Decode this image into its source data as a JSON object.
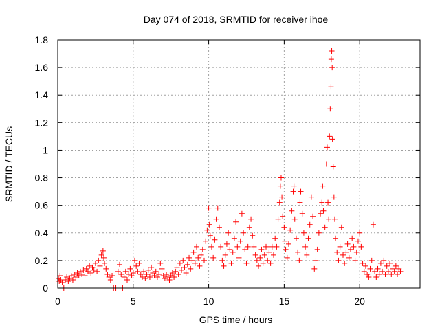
{
  "chart_data": {
    "type": "scatter",
    "title": "Day 074 of 2018, SRMTID for receiver ihoe",
    "xlabel": "GPS time / hours",
    "ylabel": "SRMTID / TECUs",
    "xlim": [
      0,
      24
    ],
    "ylim": [
      0,
      1.8
    ],
    "x_ticks": [
      0,
      5,
      10,
      15,
      20
    ],
    "x_tick_labels": [
      "0",
      "5",
      "10",
      "15",
      "20"
    ],
    "y_ticks": [
      0,
      0.2,
      0.4,
      0.6,
      0.8,
      1.0,
      1.2,
      1.4,
      1.6,
      1.8
    ],
    "y_tick_labels": [
      "0",
      "0.2",
      "0.4",
      "0.6",
      "0.8",
      "1",
      "1.2",
      "1.4",
      "1.6",
      "1.8"
    ],
    "grid": true,
    "marker": "plus",
    "series": [
      {
        "name": "SRMTID",
        "color": "#ff0000",
        "points": [
          [
            0.05,
            0.07
          ],
          [
            0.1,
            0.05
          ],
          [
            0.15,
            0.09
          ],
          [
            0.2,
            0.06
          ],
          [
            0.3,
            0.04
          ],
          [
            0.4,
            0.0
          ],
          [
            0.5,
            0.06
          ],
          [
            0.6,
            0.08
          ],
          [
            0.7,
            0.05
          ],
          [
            0.8,
            0.07
          ],
          [
            0.9,
            0.09
          ],
          [
            1.0,
            0.06
          ],
          [
            1.1,
            0.1
          ],
          [
            1.2,
            0.08
          ],
          [
            1.3,
            0.11
          ],
          [
            1.4,
            0.09
          ],
          [
            1.5,
            0.12
          ],
          [
            1.6,
            0.1
          ],
          [
            1.7,
            0.13
          ],
          [
            1.8,
            0.09
          ],
          [
            1.9,
            0.14
          ],
          [
            2.0,
            0.12
          ],
          [
            2.1,
            0.16
          ],
          [
            2.2,
            0.11
          ],
          [
            2.3,
            0.15
          ],
          [
            2.4,
            0.13
          ],
          [
            2.5,
            0.18
          ],
          [
            2.6,
            0.12
          ],
          [
            2.7,
            0.2
          ],
          [
            2.8,
            0.16
          ],
          [
            2.9,
            0.24
          ],
          [
            3.0,
            0.27
          ],
          [
            3.05,
            0.22
          ],
          [
            3.1,
            0.18
          ],
          [
            3.2,
            0.14
          ],
          [
            3.3,
            0.1
          ],
          [
            3.4,
            0.08
          ],
          [
            3.5,
            0.06
          ],
          [
            3.6,
            0.09
          ],
          [
            3.7,
            0.0
          ],
          [
            3.85,
            0.0
          ],
          [
            4.0,
            0.12
          ],
          [
            4.1,
            0.17
          ],
          [
            4.2,
            0.1
          ],
          [
            4.3,
            0.0
          ],
          [
            4.4,
            0.08
          ],
          [
            4.5,
            0.12
          ],
          [
            4.6,
            0.06
          ],
          [
            4.7,
            0.1
          ],
          [
            4.8,
            0.14
          ],
          [
            4.9,
            0.09
          ],
          [
            5.0,
            0.11
          ],
          [
            5.1,
            0.2
          ],
          [
            5.2,
            0.16
          ],
          [
            5.3,
            0.12
          ],
          [
            5.4,
            0.18
          ],
          [
            5.5,
            0.1
          ],
          [
            5.6,
            0.08
          ],
          [
            5.7,
            0.12
          ],
          [
            5.8,
            0.07
          ],
          [
            5.9,
            0.1
          ],
          [
            6.0,
            0.13
          ],
          [
            6.1,
            0.08
          ],
          [
            6.2,
            0.15
          ],
          [
            6.3,
            0.11
          ],
          [
            6.4,
            0.09
          ],
          [
            6.5,
            0.12
          ],
          [
            6.6,
            0.08
          ],
          [
            6.7,
            0.1
          ],
          [
            6.8,
            0.18
          ],
          [
            6.9,
            0.14
          ],
          [
            7.0,
            0.09
          ],
          [
            7.1,
            0.07
          ],
          [
            7.2,
            0.1
          ],
          [
            7.3,
            0.08
          ],
          [
            7.4,
            0.06
          ],
          [
            7.5,
            0.09
          ],
          [
            7.6,
            0.11
          ],
          [
            7.7,
            0.08
          ],
          [
            7.8,
            0.12
          ],
          [
            7.9,
            0.15
          ],
          [
            8.0,
            0.1
          ],
          [
            8.1,
            0.18
          ],
          [
            8.2,
            0.13
          ],
          [
            8.3,
            0.2
          ],
          [
            8.4,
            0.15
          ],
          [
            8.5,
            0.11
          ],
          [
            8.6,
            0.17
          ],
          [
            8.7,
            0.22
          ],
          [
            8.8,
            0.14
          ],
          [
            8.9,
            0.2
          ],
          [
            9.0,
            0.26
          ],
          [
            9.1,
            0.18
          ],
          [
            9.2,
            0.3
          ],
          [
            9.3,
            0.22
          ],
          [
            9.4,
            0.16
          ],
          [
            9.5,
            0.24
          ],
          [
            9.6,
            0.28
          ],
          [
            9.7,
            0.2
          ],
          [
            9.8,
            0.34
          ],
          [
            9.9,
            0.42
          ],
          [
            10.0,
            0.58
          ],
          [
            10.05,
            0.46
          ],
          [
            10.1,
            0.38
          ],
          [
            10.2,
            0.3
          ],
          [
            10.3,
            0.22
          ],
          [
            10.4,
            0.35
          ],
          [
            10.5,
            0.5
          ],
          [
            10.6,
            0.58
          ],
          [
            10.7,
            0.44
          ],
          [
            10.8,
            0.3
          ],
          [
            10.9,
            0.2
          ],
          [
            11.0,
            0.16
          ],
          [
            11.1,
            0.24
          ],
          [
            11.2,
            0.32
          ],
          [
            11.3,
            0.4
          ],
          [
            11.4,
            0.28
          ],
          [
            11.5,
            0.18
          ],
          [
            11.6,
            0.26
          ],
          [
            11.7,
            0.36
          ],
          [
            11.8,
            0.48
          ],
          [
            11.9,
            0.3
          ],
          [
            12.0,
            0.22
          ],
          [
            12.1,
            0.34
          ],
          [
            12.2,
            0.54
          ],
          [
            12.3,
            0.4
          ],
          [
            12.4,
            0.28
          ],
          [
            12.5,
            0.18
          ],
          [
            12.6,
            0.3
          ],
          [
            12.7,
            0.44
          ],
          [
            12.8,
            0.5
          ],
          [
            12.9,
            0.38
          ],
          [
            13.0,
            0.3
          ],
          [
            13.1,
            0.24
          ],
          [
            13.2,
            0.2
          ],
          [
            13.3,
            0.16
          ],
          [
            13.4,
            0.22
          ],
          [
            13.5,
            0.28
          ],
          [
            13.6,
            0.18
          ],
          [
            13.7,
            0.24
          ],
          [
            13.8,
            0.3
          ],
          [
            13.9,
            0.2
          ],
          [
            14.0,
            0.26
          ],
          [
            14.1,
            0.18
          ],
          [
            14.2,
            0.3
          ],
          [
            14.3,
            0.24
          ],
          [
            14.4,
            0.36
          ],
          [
            14.5,
            0.3
          ],
          [
            14.6,
            0.5
          ],
          [
            14.7,
            0.62
          ],
          [
            14.75,
            0.74
          ],
          [
            14.8,
            0.8
          ],
          [
            14.85,
            0.66
          ],
          [
            14.9,
            0.52
          ],
          [
            15.0,
            0.44
          ],
          [
            15.05,
            0.34
          ],
          [
            15.1,
            0.28
          ],
          [
            15.2,
            0.22
          ],
          [
            15.3,
            0.32
          ],
          [
            15.4,
            0.42
          ],
          [
            15.5,
            0.56
          ],
          [
            15.6,
            0.7
          ],
          [
            15.65,
            0.74
          ],
          [
            15.7,
            0.5
          ],
          [
            15.8,
            0.36
          ],
          [
            15.9,
            0.26
          ],
          [
            16.0,
            0.2
          ],
          [
            16.05,
            0.62
          ],
          [
            16.1,
            0.7
          ],
          [
            16.2,
            0.54
          ],
          [
            16.3,
            0.4
          ],
          [
            16.4,
            0.3
          ],
          [
            16.5,
            0.24
          ],
          [
            16.6,
            0.36
          ],
          [
            16.7,
            0.46
          ],
          [
            16.8,
            0.66
          ],
          [
            16.9,
            0.52
          ],
          [
            17.0,
            0.14
          ],
          [
            17.1,
            0.2
          ],
          [
            17.2,
            0.28
          ],
          [
            17.3,
            0.4
          ],
          [
            17.4,
            0.54
          ],
          [
            17.5,
            0.62
          ],
          [
            17.55,
            0.74
          ],
          [
            17.6,
            0.56
          ],
          [
            17.7,
            0.44
          ],
          [
            17.8,
            0.9
          ],
          [
            17.85,
            1.02
          ],
          [
            17.9,
            0.62
          ],
          [
            17.95,
            0.5
          ],
          [
            18.0,
            1.1
          ],
          [
            18.05,
            1.3
          ],
          [
            18.1,
            1.46
          ],
          [
            18.12,
            1.66
          ],
          [
            18.15,
            1.72
          ],
          [
            18.18,
            1.6
          ],
          [
            18.2,
            1.08
          ],
          [
            18.25,
            0.88
          ],
          [
            18.3,
            0.66
          ],
          [
            18.35,
            0.5
          ],
          [
            18.4,
            0.36
          ],
          [
            18.5,
            0.26
          ],
          [
            18.6,
            0.2
          ],
          [
            18.7,
            0.3
          ],
          [
            18.8,
            0.44
          ],
          [
            18.9,
            0.24
          ],
          [
            19.0,
            0.18
          ],
          [
            19.1,
            0.26
          ],
          [
            19.2,
            0.32
          ],
          [
            19.3,
            0.22
          ],
          [
            19.4,
            0.28
          ],
          [
            19.5,
            0.36
          ],
          [
            19.6,
            0.3
          ],
          [
            19.7,
            0.2
          ],
          [
            19.8,
            0.26
          ],
          [
            19.9,
            0.34
          ],
          [
            20.0,
            0.4
          ],
          [
            20.1,
            0.3
          ],
          [
            20.2,
            0.18
          ],
          [
            20.3,
            0.12
          ],
          [
            20.4,
            0.16
          ],
          [
            20.5,
            0.1
          ],
          [
            20.6,
            0.08
          ],
          [
            20.7,
            0.14
          ],
          [
            20.8,
            0.2
          ],
          [
            20.9,
            0.46
          ],
          [
            21.0,
            0.12
          ],
          [
            21.1,
            0.08
          ],
          [
            21.2,
            0.14
          ],
          [
            21.3,
            0.1
          ],
          [
            21.4,
            0.18
          ],
          [
            21.5,
            0.12
          ],
          [
            21.6,
            0.2
          ],
          [
            21.7,
            0.1
          ],
          [
            21.8,
            0.16
          ],
          [
            21.9,
            0.12
          ],
          [
            22.0,
            0.18
          ],
          [
            22.1,
            0.1
          ],
          [
            22.2,
            0.14
          ],
          [
            22.3,
            0.12
          ],
          [
            22.4,
            0.16
          ],
          [
            22.5,
            0.1
          ],
          [
            22.6,
            0.14
          ],
          [
            22.7,
            0.12
          ]
        ]
      }
    ]
  }
}
